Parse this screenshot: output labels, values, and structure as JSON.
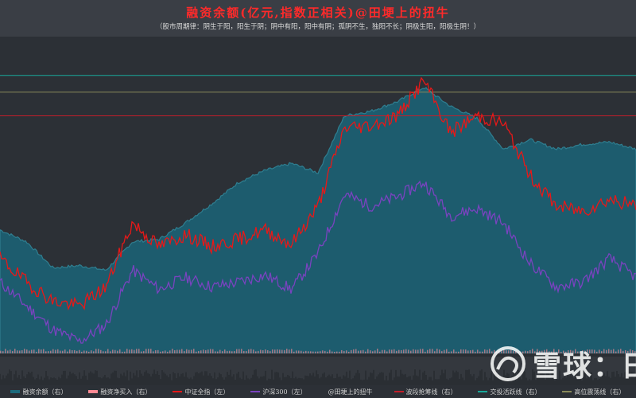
{
  "header": {
    "title": "融资余额(亿元,指数正相关)@田埂上的扭牛",
    "subtitle": "（股市周期律：阴生于阳，阳生于阴；阴中有阳，阳中有阴；孤阴不生，独阳不长；阴极生阳，阳极生阴！）"
  },
  "watermark": {
    "text": "雪球：田",
    "logo_icon": "snowball-logo-icon"
  },
  "colors": {
    "background": "#2c3036",
    "area_fill": "#1d5c6e",
    "area_top": "#2f7e90",
    "csi_all": "#e81818",
    "hs300": "#7a43c0",
    "net_buy": "#ff8a94",
    "band_line": "#c41e2a",
    "top_line": "#18a89a",
    "high_line": "#8a8a5a"
  },
  "legend": [
    {
      "label": "融资余额（右）",
      "kind": "area",
      "color": "#1d6b7d"
    },
    {
      "label": "融资净买入（右）",
      "kind": "bar",
      "color": "#ff8a94"
    },
    {
      "label": "中证全指（左）",
      "kind": "line",
      "color": "#e81818"
    },
    {
      "label": "沪深300（左）",
      "kind": "line",
      "color": "#7a43c0"
    },
    {
      "label": "@田埂上的扭牛",
      "kind": "none",
      "color": "#cccccc"
    },
    {
      "label": "波段抢筹线（右）",
      "kind": "line",
      "color": "#c41e2a"
    },
    {
      "label": "交投活跃线（右）",
      "kind": "line",
      "color": "#18a89a"
    },
    {
      "label": "高位震荡线（右）",
      "kind": "line",
      "color": "#8a8a5a"
    }
  ],
  "chart_data": {
    "type": "area",
    "x": [
      0,
      4,
      8,
      12,
      16,
      20,
      24,
      28,
      32,
      36,
      40,
      44,
      48,
      52,
      56,
      60,
      64,
      68,
      72,
      76,
      80,
      84,
      88,
      92,
      96
    ],
    "series": [
      {
        "name": "融资余额（右）",
        "axis": "right",
        "values": [
          0.52,
          0.47,
          0.36,
          0.37,
          0.35,
          0.47,
          0.48,
          0.55,
          0.63,
          0.72,
          0.77,
          0.8,
          0.76,
          1.0,
          1.02,
          1.06,
          1.12,
          1.04,
          0.99,
          0.86,
          0.9,
          0.86,
          0.88,
          0.89,
          0.86
        ]
      },
      {
        "name": "中证全指（左）",
        "axis": "left",
        "values": [
          0.4,
          0.3,
          0.22,
          0.2,
          0.28,
          0.55,
          0.45,
          0.5,
          0.45,
          0.48,
          0.52,
          0.46,
          0.62,
          0.95,
          0.96,
          1.0,
          1.15,
          0.93,
          1.0,
          0.97,
          0.75,
          0.62,
          0.6,
          0.65,
          0.62
        ]
      },
      {
        "name": "沪深300（左）",
        "axis": "left",
        "values": [
          0.3,
          0.2,
          0.1,
          0.05,
          0.12,
          0.35,
          0.27,
          0.32,
          0.28,
          0.3,
          0.33,
          0.27,
          0.42,
          0.67,
          0.62,
          0.66,
          0.72,
          0.58,
          0.61,
          0.55,
          0.38,
          0.28,
          0.3,
          0.4,
          0.32
        ]
      },
      {
        "name": "融资净买入（右）",
        "axis": "right",
        "values": [
          0.01,
          0.01,
          0.01,
          0.01,
          0.02,
          0.01,
          0.01,
          0.01,
          0.01,
          0.01,
          0.02,
          0.01,
          0.02,
          0.03,
          0.02,
          0.01,
          0.02,
          0.01,
          0.01,
          0.01,
          0.01,
          0.01,
          0.01,
          0.01,
          0.01
        ]
      }
    ],
    "reference_lines": [
      {
        "name": "交投活跃线（右）",
        "value": 1.17
      },
      {
        "name": "高位震荡线（右）",
        "value": 1.1
      },
      {
        "name": "波段抢筹线（右）",
        "value": 1.0
      }
    ],
    "title": "融资余额(亿元,指数正相关)@田埂上的扭牛",
    "grid": false,
    "legend_position": "bottom"
  }
}
